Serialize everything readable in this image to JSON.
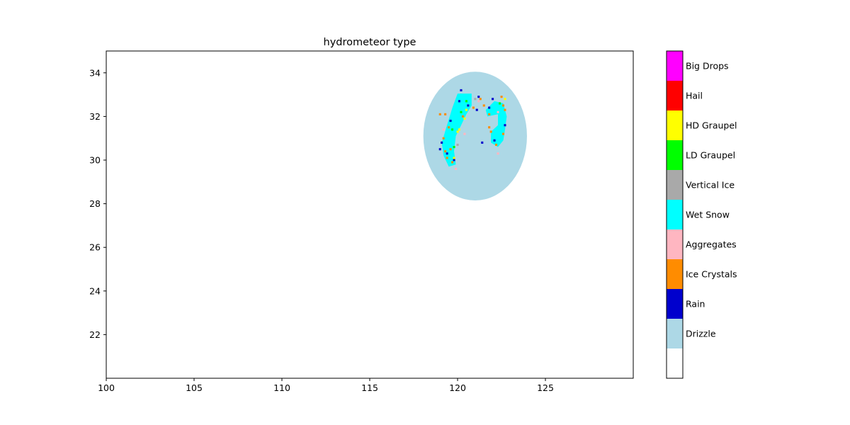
{
  "chart_data": {
    "type": "heatmap",
    "title": "hydrometeor type",
    "xlabel": "",
    "ylabel": "",
    "xlim": [
      100,
      130
    ],
    "ylim": [
      20,
      35
    ],
    "xticks": [
      100,
      105,
      110,
      115,
      120,
      125
    ],
    "yticks": [
      22,
      24,
      26,
      28,
      30,
      32,
      34
    ],
    "grid": false,
    "colorbar": {
      "placement": "right",
      "classes": [
        {
          "label": "",
          "color": "#ffffff"
        },
        {
          "label": "Drizzle",
          "color": "#add8e6"
        },
        {
          "label": "Rain",
          "color": "#0000cd"
        },
        {
          "label": "Ice Crystals",
          "color": "#ff8c00"
        },
        {
          "label": "Aggregates",
          "color": "#ffb6c1"
        },
        {
          "label": "Wet Snow",
          "color": "#00ffff"
        },
        {
          "label": "Vertical Ice",
          "color": "#a9a9a9"
        },
        {
          "label": "LD Graupel",
          "color": "#00ff00"
        },
        {
          "label": "HD Graupel",
          "color": "#ffff00"
        },
        {
          "label": "Hail",
          "color": "#ff0000"
        },
        {
          "label": "Big Drops",
          "color": "#ff00ff"
        }
      ]
    },
    "radar_coverage": {
      "center_lon": 121.0,
      "center_lat": 31.1,
      "radius_deg": 2.95,
      "background_class": "Drizzle"
    },
    "regions": [
      {
        "class": "Wet Snow",
        "points": [
          [
            120.0,
            33.05
          ],
          [
            120.8,
            33.05
          ],
          [
            120.8,
            32.5
          ],
          [
            120.5,
            32.1
          ],
          [
            120.2,
            31.6
          ],
          [
            119.9,
            31.1
          ],
          [
            119.8,
            30.4
          ],
          [
            119.9,
            29.8
          ],
          [
            119.5,
            29.7
          ],
          [
            119.2,
            30.2
          ],
          [
            119.1,
            30.8
          ],
          [
            119.4,
            31.6
          ],
          [
            119.7,
            32.4
          ]
        ]
      },
      {
        "class": "Wet Snow",
        "points": [
          [
            121.6,
            32.3
          ],
          [
            122.1,
            32.7
          ],
          [
            122.6,
            32.6
          ],
          [
            122.8,
            32.0
          ],
          [
            122.7,
            31.4
          ],
          [
            122.6,
            30.9
          ],
          [
            122.3,
            30.6
          ],
          [
            121.9,
            30.8
          ],
          [
            121.9,
            31.3
          ],
          [
            122.3,
            31.6
          ],
          [
            122.3,
            32.1
          ],
          [
            121.7,
            32.0
          ]
        ]
      }
    ],
    "pixels": [
      {
        "class": "Rain",
        "lon": 120.2,
        "lat": 33.2
      },
      {
        "class": "Rain",
        "lon": 120.1,
        "lat": 32.7
      },
      {
        "class": "Rain",
        "lon": 121.2,
        "lat": 32.9
      },
      {
        "class": "Rain",
        "lon": 122.0,
        "lat": 32.8
      },
      {
        "class": "Rain",
        "lon": 121.1,
        "lat": 32.3
      },
      {
        "class": "Rain",
        "lon": 120.6,
        "lat": 32.5
      },
      {
        "class": "Rain",
        "lon": 119.6,
        "lat": 31.8
      },
      {
        "class": "Rain",
        "lon": 119.1,
        "lat": 30.8
      },
      {
        "class": "Rain",
        "lon": 119.4,
        "lat": 30.3
      },
      {
        "class": "Rain",
        "lon": 119.8,
        "lat": 30.0
      },
      {
        "class": "Rain",
        "lon": 121.4,
        "lat": 30.8
      },
      {
        "class": "Rain",
        "lon": 122.1,
        "lat": 30.9
      },
      {
        "class": "Rain",
        "lon": 122.7,
        "lat": 31.6
      },
      {
        "class": "Rain",
        "lon": 121.8,
        "lat": 32.4
      },
      {
        "class": "Rain",
        "lon": 119.0,
        "lat": 30.5
      },
      {
        "class": "Ice Crystals",
        "lon": 119.3,
        "lat": 32.1
      },
      {
        "class": "Ice Crystals",
        "lon": 119.5,
        "lat": 31.5
      },
      {
        "class": "Ice Crystals",
        "lon": 119.2,
        "lat": 31.0
      },
      {
        "class": "Ice Crystals",
        "lon": 119.6,
        "lat": 30.5
      },
      {
        "class": "Ice Crystals",
        "lon": 119.4,
        "lat": 30.1
      },
      {
        "class": "Ice Crystals",
        "lon": 119.7,
        "lat": 29.9
      },
      {
        "class": "Ice Crystals",
        "lon": 120.0,
        "lat": 31.3
      },
      {
        "class": "Ice Crystals",
        "lon": 120.3,
        "lat": 32.0
      },
      {
        "class": "Ice Crystals",
        "lon": 120.9,
        "lat": 32.4
      },
      {
        "class": "Ice Crystals",
        "lon": 121.5,
        "lat": 32.5
      },
      {
        "class": "Ice Crystals",
        "lon": 121.8,
        "lat": 32.1
      },
      {
        "class": "Ice Crystals",
        "lon": 122.5,
        "lat": 32.9
      },
      {
        "class": "Ice Crystals",
        "lon": 122.6,
        "lat": 32.5
      },
      {
        "class": "Ice Crystals",
        "lon": 122.7,
        "lat": 32.3
      },
      {
        "class": "Ice Crystals",
        "lon": 121.8,
        "lat": 31.5
      },
      {
        "class": "Ice Crystals",
        "lon": 121.9,
        "lat": 31.3
      },
      {
        "class": "Ice Crystals",
        "lon": 122.2,
        "lat": 30.7
      },
      {
        "class": "Ice Crystals",
        "lon": 122.6,
        "lat": 31.2
      },
      {
        "class": "Ice Crystals",
        "lon": 121.3,
        "lat": 32.8
      },
      {
        "class": "Ice Crystals",
        "lon": 119.0,
        "lat": 32.1
      },
      {
        "class": "Ice Crystals",
        "lon": 119.3,
        "lat": 30.4
      },
      {
        "class": "Aggregates",
        "lon": 119.9,
        "lat": 29.6
      },
      {
        "class": "Aggregates",
        "lon": 122.3,
        "lat": 30.3
      },
      {
        "class": "Aggregates",
        "lon": 119.2,
        "lat": 31.4
      },
      {
        "class": "Aggregates",
        "lon": 120.4,
        "lat": 31.2
      },
      {
        "class": "Aggregates",
        "lon": 121.2,
        "lat": 32.7
      },
      {
        "class": "Aggregates",
        "lon": 122.3,
        "lat": 32.2
      },
      {
        "class": "LD Graupel",
        "lon": 120.2,
        "lat": 32.2
      },
      {
        "class": "LD Graupel",
        "lon": 119.7,
        "lat": 31.4
      },
      {
        "class": "LD Graupel",
        "lon": 120.5,
        "lat": 32.7
      },
      {
        "class": "LD Graupel",
        "lon": 122.4,
        "lat": 32.6
      },
      {
        "class": "LD Graupel",
        "lon": 119.8,
        "lat": 30.6
      },
      {
        "class": "HD Graupel",
        "lon": 120.1,
        "lat": 31.4
      },
      {
        "class": "HD Graupel",
        "lon": 120.0,
        "lat": 31.3
      },
      {
        "class": "HD Graupel",
        "lon": 120.4,
        "lat": 31.9
      },
      {
        "class": "HD Graupel",
        "lon": 120.5,
        "lat": 32.3
      },
      {
        "class": "HD Graupel",
        "lon": 122.7,
        "lat": 32.8
      },
      {
        "class": "HD Graupel",
        "lon": 119.8,
        "lat": 30.1
      },
      {
        "class": "Vertical Ice",
        "lon": 120.0,
        "lat": 30.7
      },
      {
        "class": "Vertical Ice",
        "lon": 121.0,
        "lat": 32.8
      }
    ]
  }
}
